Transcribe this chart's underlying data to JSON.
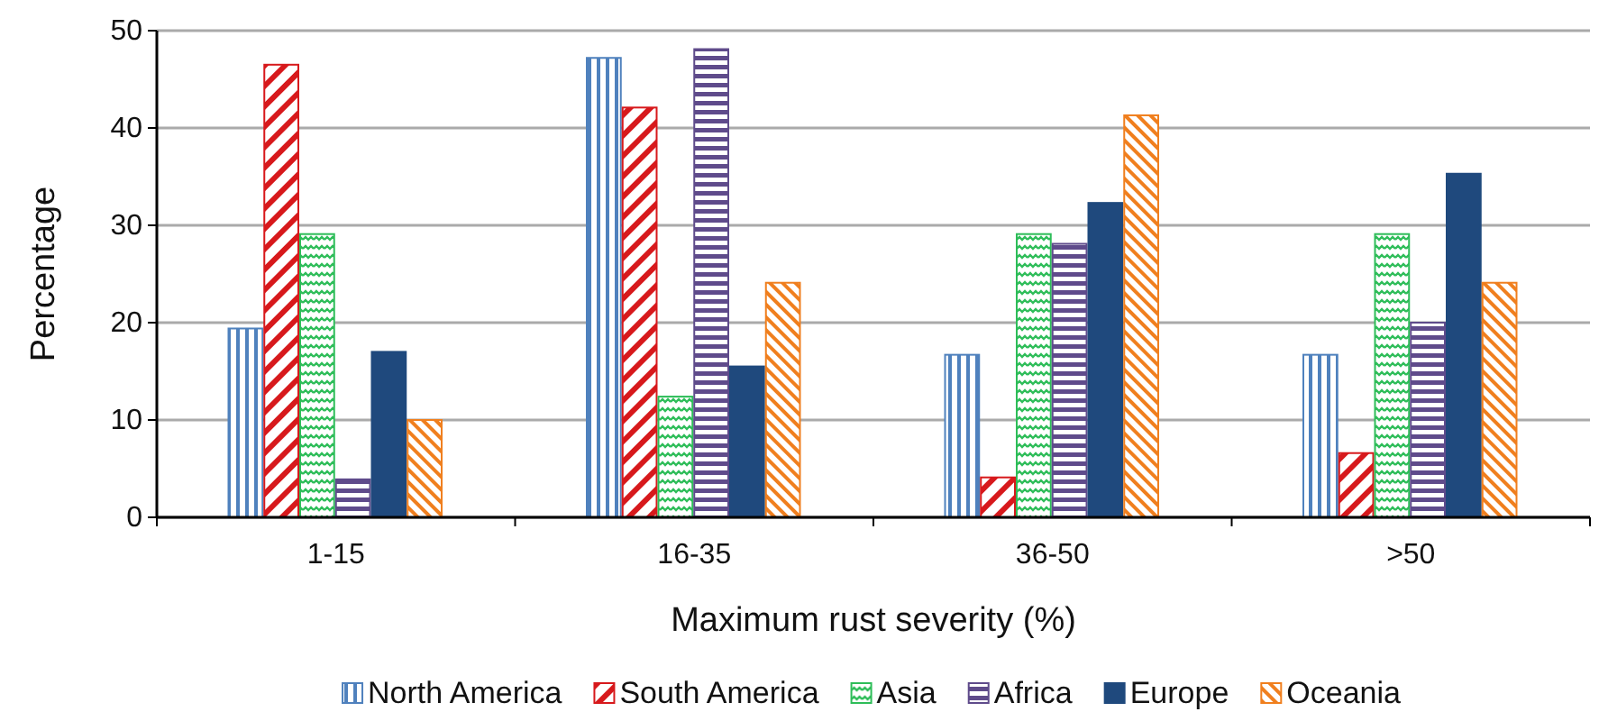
{
  "chart_data": {
    "type": "bar",
    "xlabel": "Maximum rust severity (%)",
    "ylabel": "Percentage",
    "categories": [
      "1-15",
      "16-35",
      "36-50",
      ">50"
    ],
    "series": [
      {
        "name": "North America",
        "color": "#4f81bd",
        "values": [
          19.4,
          47.2,
          16.7,
          16.7
        ]
      },
      {
        "name": "South America",
        "color": "#d7191c",
        "values": [
          46.5,
          42.1,
          4.1,
          6.6
        ]
      },
      {
        "name": "Asia",
        "color": "#2ebd59",
        "values": [
          29.1,
          12.4,
          29.1,
          29.1
        ]
      },
      {
        "name": "Africa",
        "color": "#5f4b8b",
        "values": [
          3.9,
          48.1,
          28.1,
          20.0
        ]
      },
      {
        "name": "Europe",
        "color": "#1f497d",
        "values": [
          17.0,
          15.5,
          32.3,
          35.3
        ]
      },
      {
        "name": "Oceania",
        "color": "#f07f1e",
        "values": [
          10.0,
          24.1,
          41.3,
          24.1
        ]
      }
    ],
    "ylim": [
      0,
      50
    ],
    "yticks": [
      0,
      10,
      20,
      30,
      40,
      50
    ],
    "grid": "y",
    "legend": "bottom"
  }
}
